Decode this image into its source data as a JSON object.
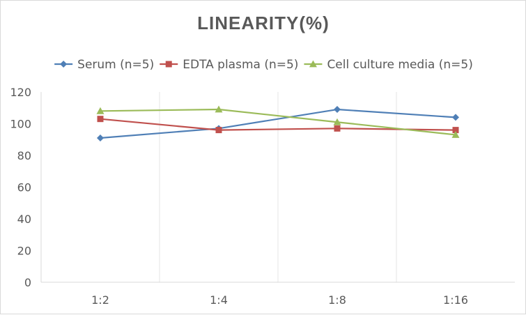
{
  "chart_data": {
    "type": "line",
    "title": "LINEARITY(%)",
    "categories": [
      "1:2",
      "1:4",
      "1:8",
      "1:16"
    ],
    "ylim": [
      0,
      120
    ],
    "yticks": [
      0,
      20,
      40,
      60,
      80,
      100,
      120
    ],
    "grid": "vertical",
    "legend_position": "top",
    "series": [
      {
        "name": "Serum (n=5)",
        "color": "#4f7fb6",
        "marker": "diamond",
        "values": [
          91,
          97,
          109,
          104
        ]
      },
      {
        "name": "EDTA plasma (n=5)",
        "color": "#c0504d",
        "marker": "square",
        "values": [
          103,
          96,
          97,
          96
        ]
      },
      {
        "name": "Cell culture media (n=5)",
        "color": "#9bbb59",
        "marker": "triangle",
        "values": [
          108,
          109,
          101,
          93
        ]
      }
    ]
  }
}
